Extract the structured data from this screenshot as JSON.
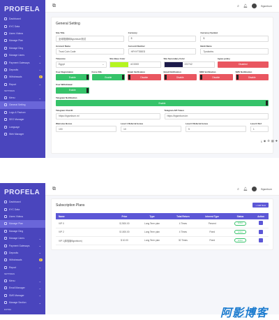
{
  "panel1": {
    "brand": "PROFELA",
    "nav": [
      {
        "label": "Dashboard",
        "type": "item"
      },
      {
        "label": "KYC Data",
        "type": "item"
      },
      {
        "label": "Users Videos",
        "type": "item"
      },
      {
        "label": "Manage Plan",
        "type": "item"
      },
      {
        "label": "Manage Ding",
        "type": "item"
      },
      {
        "label": "Manage Users",
        "type": "item",
        "chev": "⌄"
      },
      {
        "label": "Payment Gateways",
        "type": "item",
        "chev": "⌄"
      },
      {
        "label": "Deposits",
        "type": "item",
        "chev": "⌄"
      },
      {
        "label": "Withdrawals",
        "type": "item",
        "badge": "2"
      },
      {
        "label": "Report",
        "type": "item",
        "chev": "⌄"
      },
      {
        "label": "SETTINGS",
        "type": "sec"
      },
      {
        "label": "Menu",
        "type": "item",
        "chev": "⌄"
      },
      {
        "label": "General Setting",
        "type": "item",
        "active": true
      },
      {
        "label": "Logo & Favicon",
        "type": "item"
      },
      {
        "label": "SEO Manager",
        "type": "item"
      },
      {
        "label": "Language",
        "type": "item"
      },
      {
        "label": "Web Manager",
        "type": "item"
      }
    ],
    "user": "Bgsmbum",
    "title": "General Setting",
    "row1": [
      {
        "label": "Site Title",
        "value": "全球视频网Bgsmbum测试"
      },
      {
        "label": "Currency",
        "value": "$"
      },
      {
        "label": "Currency Symbol",
        "value": "$"
      }
    ],
    "row2": [
      {
        "label": "Account Name",
        "value": "Trust Coin Code"
      },
      {
        "label": "Account Number",
        "value": "HFHYTSBED"
      },
      {
        "label": "Bank Name",
        "value": "Tyndarins"
      }
    ],
    "row3": {
      "timezone_label": "Timezone",
      "timezone_value": "Egypt",
      "base_color_label": "Site Base Color",
      "base_color_value": "#C0000",
      "secondary_color_label": "Site Secondary Color",
      "secondary_color_value": "222742",
      "agree_label": "Agree policy",
      "agree_value": "Disabled"
    },
    "row4": [
      {
        "label": "User Registration",
        "value": "Enable",
        "state": "on"
      },
      {
        "label": "Force SSL",
        "value": "Enable",
        "state": "on"
      },
      {
        "label": "Email Verification",
        "value": "Disable",
        "state": "off"
      },
      {
        "label": "Email Notification",
        "value": "Disable",
        "state": "off"
      },
      {
        "label": "SMS Verification",
        "value": "Disable",
        "state": "off"
      },
      {
        "label": "SMS Notification",
        "value": "Disable",
        "state": "off"
      }
    ],
    "withdrawal_label": "User Withdrawal",
    "withdrawal_value": "Enable",
    "telegram_notif_label": "Telegram Notification",
    "telegram_notif_value": "Enable",
    "tg_id_label": "Telegram Chat ID",
    "tg_id_value": "https://bgsmbum.m/",
    "tg_token_label": "Telegram API Token",
    "tg_token_value": "https://bgsmbum.tm",
    "row7": [
      {
        "label": "Welcome Bonus",
        "value": "100"
      },
      {
        "label": "Level 1 Referral bonus",
        "value": "10"
      },
      {
        "label": "Level 2 Referral bonus",
        "value": "5"
      },
      {
        "label": "Level 3 Ref",
        "value": "1"
      }
    ]
  },
  "panel2": {
    "nav": [
      {
        "label": "Dashboard",
        "type": "item"
      },
      {
        "label": "KYC Data",
        "type": "item"
      },
      {
        "label": "Users Videos",
        "type": "item"
      },
      {
        "label": "Manage Plan",
        "type": "item",
        "active": true
      },
      {
        "label": "Manage Ding",
        "type": "item"
      },
      {
        "label": "Manage Users",
        "type": "item",
        "chev": "⌄"
      },
      {
        "label": "Payment Gateways",
        "type": "item",
        "chev": "⌄"
      },
      {
        "label": "Deposits",
        "type": "item",
        "chev": "⌄"
      },
      {
        "label": "Withdrawals",
        "type": "item",
        "badge": "2"
      },
      {
        "label": "Report",
        "type": "item",
        "chev": "⌄"
      },
      {
        "label": "SETTINGS",
        "type": "sec"
      },
      {
        "label": "Menu",
        "type": "item",
        "chev": "⌄"
      },
      {
        "label": "Email Manager",
        "type": "item",
        "chev": "⌄"
      },
      {
        "label": "SMS Manager",
        "type": "item",
        "chev": "⌄"
      },
      {
        "label": "Manage Section",
        "type": "item",
        "chev": "⌄"
      },
      {
        "label": "EXTRA",
        "type": "sec"
      },
      {
        "label": "Database",
        "type": "item"
      }
    ],
    "user": "Bgsmbum",
    "title": "Subscription Plans",
    "add_label": "+ Add New",
    "headers": [
      "Name",
      "Price",
      "Type",
      "Total Return",
      "Interest Type",
      "Status",
      "Action"
    ],
    "rows": [
      {
        "name": "VIP 0",
        "price": "$ 2000.00",
        "type": "Long Term plan",
        "ret": "4 Times",
        "interest": "Percent",
        "status": "Active"
      },
      {
        "name": "VIP 2",
        "price": "$ 1000.00",
        "type": "Long Term plan",
        "ret": "4 Times",
        "interest": "Fixed",
        "status": "Active"
      },
      {
        "name": "VIP 1(体验版Bgsmbum)",
        "price": "$ 10.00",
        "type": "Long Term plan",
        "ret": "30 Times",
        "interest": "Fixed",
        "status": "Active"
      }
    ]
  },
  "watermark": {
    "text": "阿影博客",
    "sub": "AYBK.CN"
  }
}
